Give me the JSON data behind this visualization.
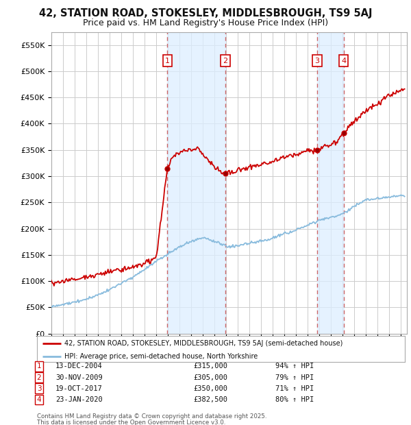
{
  "title_line1": "42, STATION ROAD, STOKESLEY, MIDDLESBROUGH, TS9 5AJ",
  "title_line2": "Price paid vs. HM Land Registry's House Price Index (HPI)",
  "ylim": [
    0,
    575000
  ],
  "yticks": [
    0,
    50000,
    100000,
    150000,
    200000,
    250000,
    300000,
    350000,
    400000,
    450000,
    500000,
    550000
  ],
  "ytick_labels": [
    "£0",
    "£50K",
    "£100K",
    "£150K",
    "£200K",
    "£250K",
    "£300K",
    "£350K",
    "£400K",
    "£450K",
    "£500K",
    "£550K"
  ],
  "xlim_start": 1995.0,
  "xlim_end": 2025.5,
  "background_color": "#ffffff",
  "plot_bg_color": "#ffffff",
  "grid_color": "#cccccc",
  "red_line_color": "#cc0000",
  "blue_line_color": "#88bbdd",
  "vline_color": "#cc6666",
  "vline_shade_color": "#ddeeff",
  "transaction_label_color": "#cc0000",
  "legend_line1": "42, STATION ROAD, STOKESLEY, MIDDLESBROUGH, TS9 5AJ (semi-detached house)",
  "legend_line2": "HPI: Average price, semi-detached house, North Yorkshire",
  "transactions": [
    {
      "num": 1,
      "date": "13-DEC-2004",
      "price": 315000,
      "hpi_pct": "94%",
      "year": 2004.95
    },
    {
      "num": 2,
      "date": "30-NOV-2009",
      "price": 305000,
      "hpi_pct": "79%",
      "year": 2009.92
    },
    {
      "num": 3,
      "date": "19-OCT-2017",
      "price": 350000,
      "hpi_pct": "71%",
      "year": 2017.8
    },
    {
      "num": 4,
      "date": "23-JAN-2020",
      "price": 382500,
      "hpi_pct": "80%",
      "year": 2020.07
    }
  ],
  "footer_line1": "Contains HM Land Registry data © Crown copyright and database right 2025.",
  "footer_line2": "This data is licensed under the Open Government Licence v3.0."
}
